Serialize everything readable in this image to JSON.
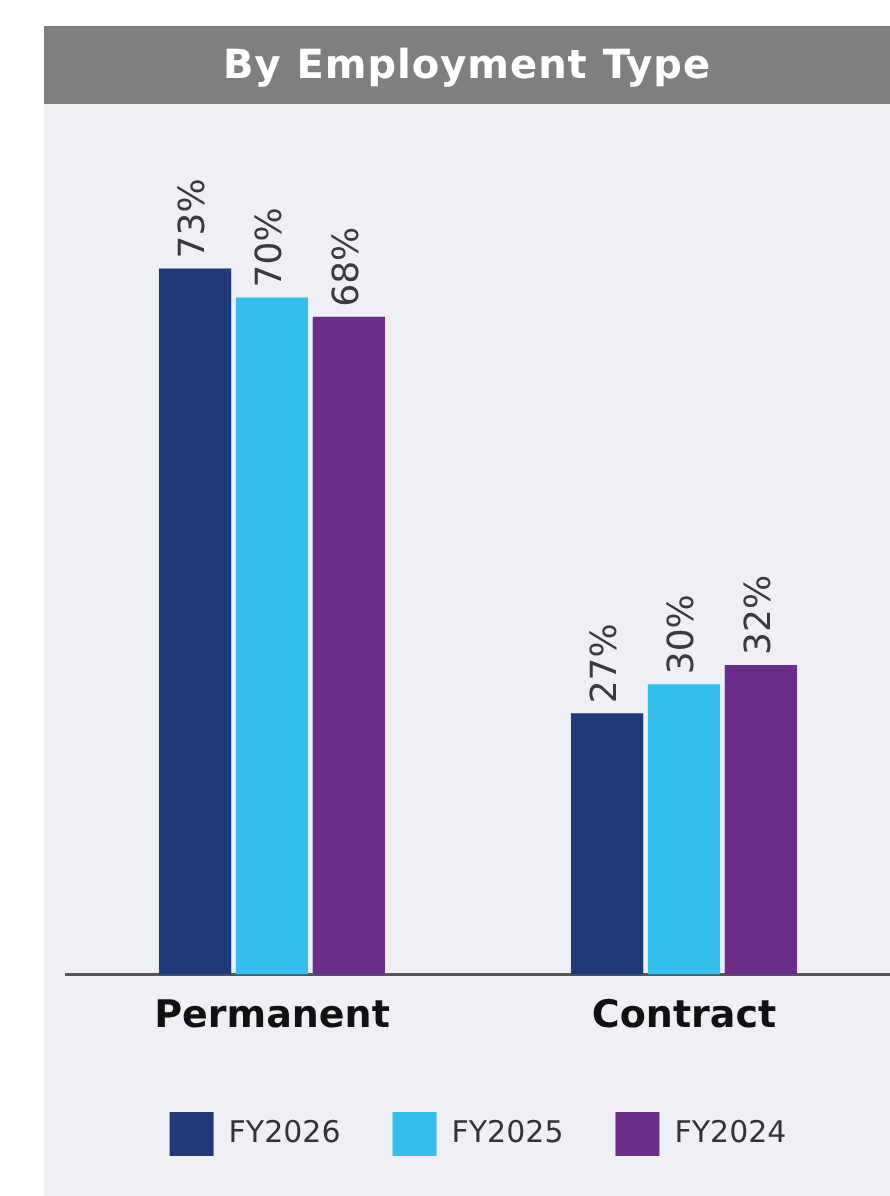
{
  "chart_data": {
    "type": "bar",
    "title": "By Employment Type",
    "categories": [
      "Permanent",
      "Contract"
    ],
    "series": [
      {
        "name": "FY2026",
        "color": "#1f3a78",
        "values": [
          73,
          27
        ],
        "value_labels": [
          "73%",
          "27%"
        ]
      },
      {
        "name": "FY2025",
        "color": "#33bfee",
        "values": [
          70,
          30
        ],
        "value_labels": [
          "70%",
          "30%"
        ]
      },
      {
        "name": "FY2024",
        "color": "#6b2d8a",
        "values": [
          68,
          32
        ],
        "value_labels": [
          "68%",
          "32%"
        ]
      }
    ],
    "tick_labels": "x",
    "grid": false,
    "legend": "bottom"
  }
}
